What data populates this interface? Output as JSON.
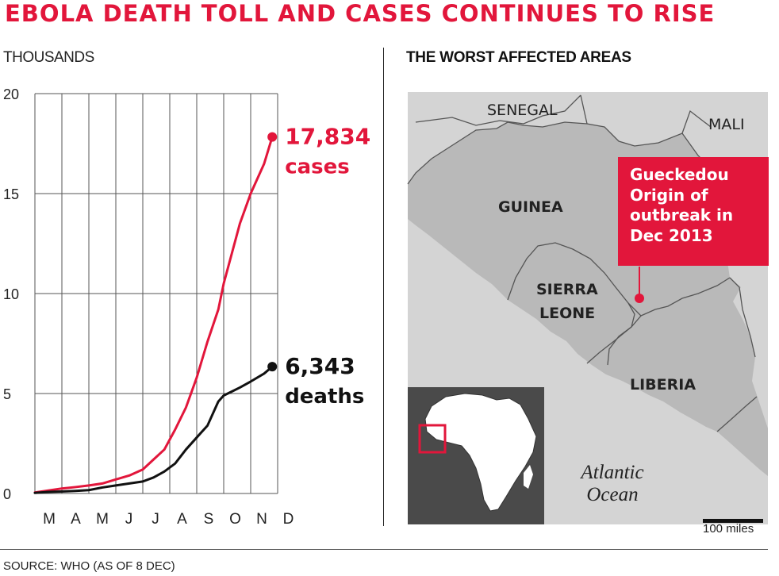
{
  "title": "EBOLA DEATH TOLL AND CASES CONTINUES TO RISE",
  "source": "SOURCE: WHO (AS OF 8 DEC)",
  "chart_data": {
    "type": "line",
    "ylabel": "THOUSANDS",
    "ylim": [
      0,
      20
    ],
    "yticks": [
      0,
      5,
      10,
      15,
      20
    ],
    "categories": [
      "M",
      "A",
      "M",
      "J",
      "J",
      "A",
      "S",
      "O",
      "N",
      "D"
    ],
    "grid": true,
    "series": [
      {
        "name": "cases",
        "color": "#e2163b",
        "end_value_label": "17,834",
        "end_name_label": "cases",
        "x": [
          0,
          0.5,
          1,
          1.5,
          2,
          2.5,
          3,
          3.5,
          4,
          4.4,
          4.8,
          5.2,
          5.6,
          6,
          6.4,
          6.8,
          7,
          7.3,
          7.6,
          8,
          8.5,
          8.8
        ],
        "values": [
          0.05,
          0.15,
          0.25,
          0.32,
          0.4,
          0.5,
          0.7,
          0.9,
          1.2,
          1.7,
          2.2,
          3.2,
          4.3,
          5.8,
          7.6,
          9.2,
          10.5,
          12.0,
          13.5,
          15.0,
          16.5,
          17.834
        ]
      },
      {
        "name": "deaths",
        "color": "#111111",
        "end_value_label": "6,343",
        "end_name_label": "deaths",
        "x": [
          0,
          0.5,
          1,
          1.5,
          2,
          2.5,
          3,
          3.5,
          4,
          4.4,
          4.8,
          5.2,
          5.6,
          6,
          6.4,
          6.8,
          7,
          7.3,
          7.6,
          8,
          8.5,
          8.8
        ],
        "values": [
          0.03,
          0.08,
          0.1,
          0.13,
          0.17,
          0.3,
          0.4,
          0.5,
          0.6,
          0.8,
          1.1,
          1.5,
          2.2,
          2.8,
          3.4,
          4.6,
          4.9,
          5.1,
          5.3,
          5.6,
          6.0,
          6.343
        ]
      }
    ]
  },
  "map": {
    "title": "THE WORST AFFECTED AREAS",
    "land_color": "#d4d4d4",
    "affected_color": "#b9b9b9",
    "accent": "#e2163b",
    "labels": {
      "senegal": "SENEGAL",
      "mali": "MALI",
      "guinea": "GUINEA",
      "sierra_leone_1": "SIERRA",
      "sierra_leone_2": "LEONE",
      "liberia": "LIBERIA",
      "africa": "AFRICA",
      "ocean_1": "Atlantic",
      "ocean_2": "Ocean"
    },
    "origin_lines": [
      "Gueckedou",
      "Origin of",
      "outbreak in",
      "Dec 2013"
    ],
    "scale_label": "100 miles"
  }
}
